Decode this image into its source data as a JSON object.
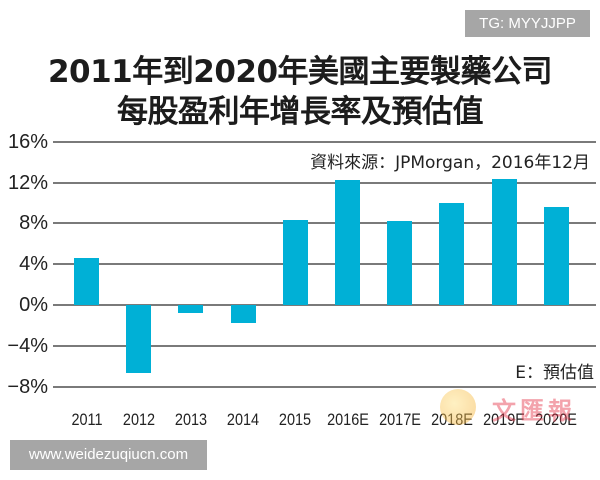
{
  "watermarks": {
    "top_right": "TG: MYYJJPP",
    "bottom_left": "www.weidezuqiucn.com",
    "logo_text": "文匯報"
  },
  "header": {
    "title_line1": "2011年到2020年美國主要製藥公司",
    "title_line2": "每股盈利年增長率及預估值"
  },
  "annotations": {
    "source": "資料來源：JPMorgan，2016年12月",
    "note": "E：預估值"
  },
  "colors": {
    "bar": "#00b0d6",
    "grid": "#7a7a7a"
  },
  "chart_data": {
    "type": "bar",
    "title": "2011年到2020年美國主要製藥公司每股盈利年增長率及預估值",
    "xlabel": "",
    "ylabel": "",
    "categories": [
      "2011",
      "2012",
      "2013",
      "2014",
      "2015",
      "2016E",
      "2017E",
      "2018E",
      "2019E",
      "2020E"
    ],
    "values": [
      4.6,
      -6.7,
      -0.8,
      -1.8,
      8.3,
      12.3,
      8.2,
      10.0,
      12.4,
      9.6
    ],
    "value_unit": "%",
    "ylim": [
      -8,
      16
    ],
    "yticks": [
      "16%",
      "12%",
      "8%",
      "4%",
      "0%",
      "−4%",
      "−8%"
    ],
    "grid": true,
    "source": "資料來源：JPMorgan，2016年12月",
    "annotation": "E：預估值"
  }
}
